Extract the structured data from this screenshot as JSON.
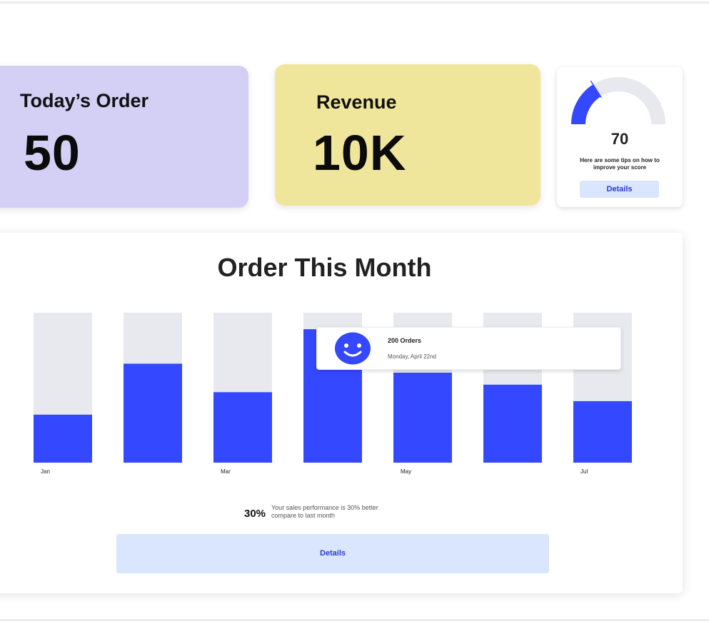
{
  "orders_card": {
    "title": "Today’s Order",
    "value": "50"
  },
  "revenue_card": {
    "title": "Revenue",
    "value": "10K"
  },
  "score_card": {
    "score": "70",
    "gauge_fraction": 0.32,
    "tip": "Here are some tips on how to improve your score",
    "button_label": "Details"
  },
  "order_chart": {
    "title": "Order This Month",
    "tooltip": {
      "title": "200 Orders",
      "date": "Monday, April 22nd",
      "icon": "smiley-icon"
    },
    "performance": {
      "value": "30%",
      "text": "Your sales performance is 30% better compare to last month"
    },
    "button_label": "Details"
  },
  "colors": {
    "bar": "#3448ff",
    "track": "#e7e9ee",
    "accent": "#2b3ad4",
    "button_bg": "#d9e6fd"
  },
  "chart_data": {
    "type": "bar",
    "categories": [
      "Jan",
      "",
      "Mar",
      "",
      "May",
      "",
      "Jul"
    ],
    "values": [
      32,
      66,
      47,
      89,
      60,
      52,
      41
    ],
    "ylim": [
      0,
      100
    ],
    "grid": false
  }
}
